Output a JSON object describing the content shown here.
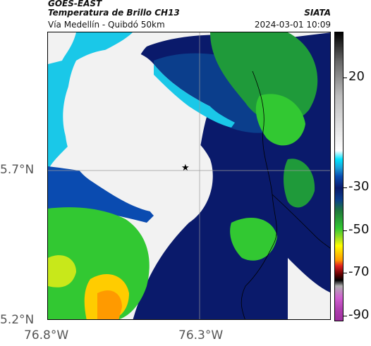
{
  "header": {
    "satellite": "GOES-EAST",
    "title": "Temperatura de Brillo CH13",
    "organization": "SIATA",
    "subtitle": "Vía Medellín - Quibdó 50km",
    "datetime": "2024-03-01 10:09"
  },
  "axes": {
    "lat_labels": [
      "5.7°N",
      "5.2°N"
    ],
    "lon_labels": [
      "76.8°W",
      "76.3°W"
    ]
  },
  "colorbar": {
    "labels": [
      "20",
      "-30",
      "-50",
      "-70",
      "-90"
    ]
  },
  "marker": {
    "symbol": "★",
    "name": "location-marker"
  },
  "colors": {
    "cold_cloud": "#f2f2f2",
    "cyan": "#00e5ff",
    "dark_blue": "#0a1a6b",
    "green": "#32c832",
    "yellow": "#ffff00",
    "orange": "#ff9a00"
  }
}
